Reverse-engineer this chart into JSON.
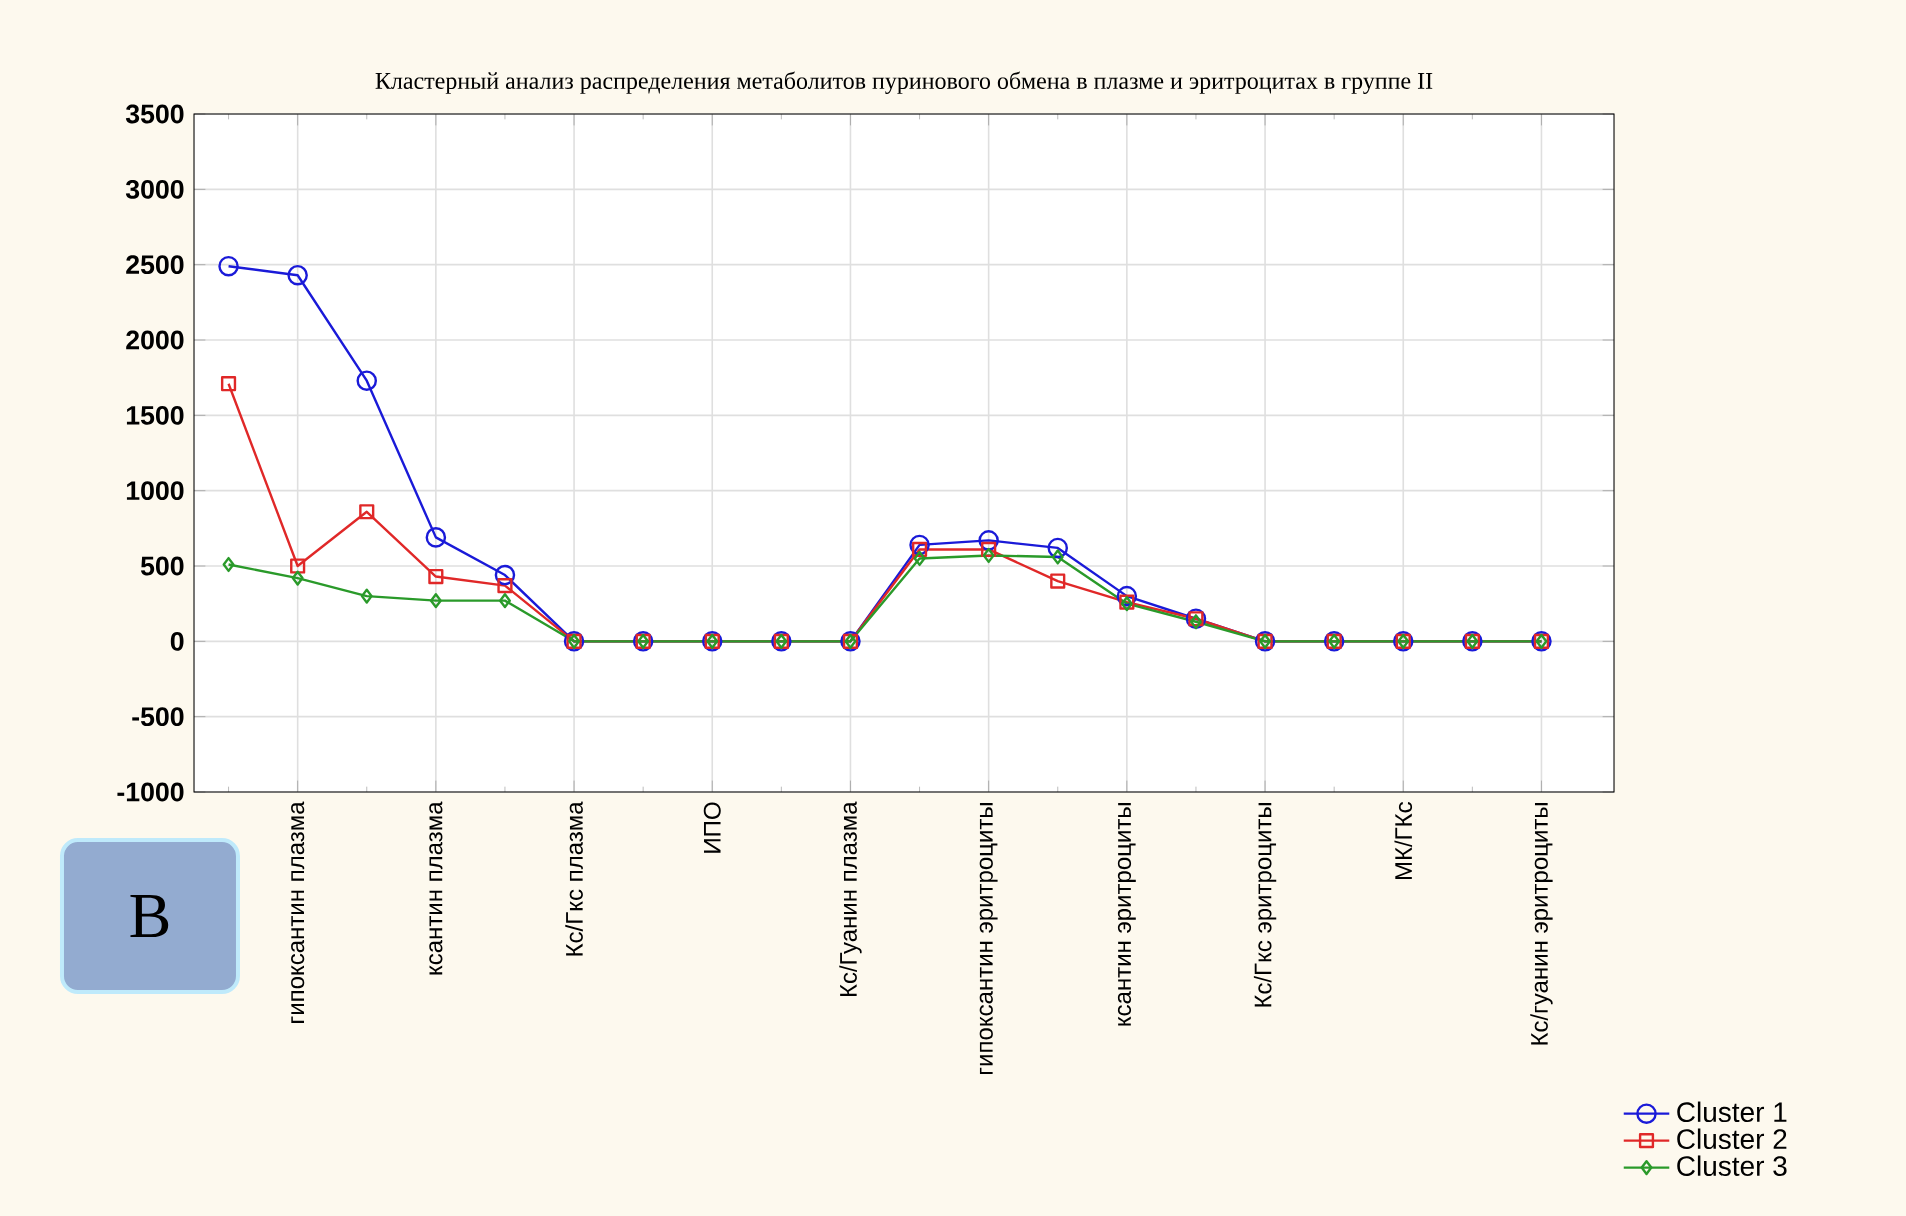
{
  "chart_data": {
    "type": "line",
    "title": "Кластерный анализ распределения метаболитов пуринового обмена в плазме и эритроцитах в группе II",
    "categories": [
      null,
      "гипоксантин плазма",
      null,
      "ксантин плазма",
      null,
      "Кс/Гкс плазма",
      null,
      "ИПО",
      null,
      "Кс/Гуанин плазма",
      null,
      "гипоксантин эритроциты",
      null,
      "ксантин эритроциты",
      null,
      "Кс/Гкс эритроциты",
      null,
      "МК/ГКс",
      null,
      "Кс/гуанин эритроциты"
    ],
    "ylim": [
      -1000,
      3500
    ],
    "yticks": [
      -1000,
      -500,
      0,
      500,
      1000,
      1500,
      2000,
      2500,
      3000,
      3500
    ],
    "grid": true,
    "legend": "bottom right",
    "annotations": [
      "В"
    ],
    "series": [
      {
        "name": "Cluster  1",
        "color": "#1a1ad8",
        "marker": "circle",
        "values": [
          2490,
          2430,
          1730,
          690,
          440,
          0,
          0,
          0,
          0,
          0,
          640,
          670,
          620,
          300,
          150,
          0,
          0,
          0,
          0,
          0
        ]
      },
      {
        "name": "Cluster  2",
        "color": "#e02828",
        "marker": "square",
        "values": [
          1710,
          500,
          860,
          430,
          370,
          0,
          0,
          0,
          0,
          0,
          610,
          610,
          400,
          260,
          150,
          0,
          0,
          0,
          0,
          0
        ]
      },
      {
        "name": "Cluster  3",
        "color": "#2a9a2a",
        "marker": "diamond",
        "values": [
          510,
          420,
          300,
          270,
          270,
          0,
          0,
          0,
          0,
          0,
          550,
          570,
          560,
          250,
          130,
          0,
          0,
          0,
          0,
          0
        ]
      }
    ]
  }
}
